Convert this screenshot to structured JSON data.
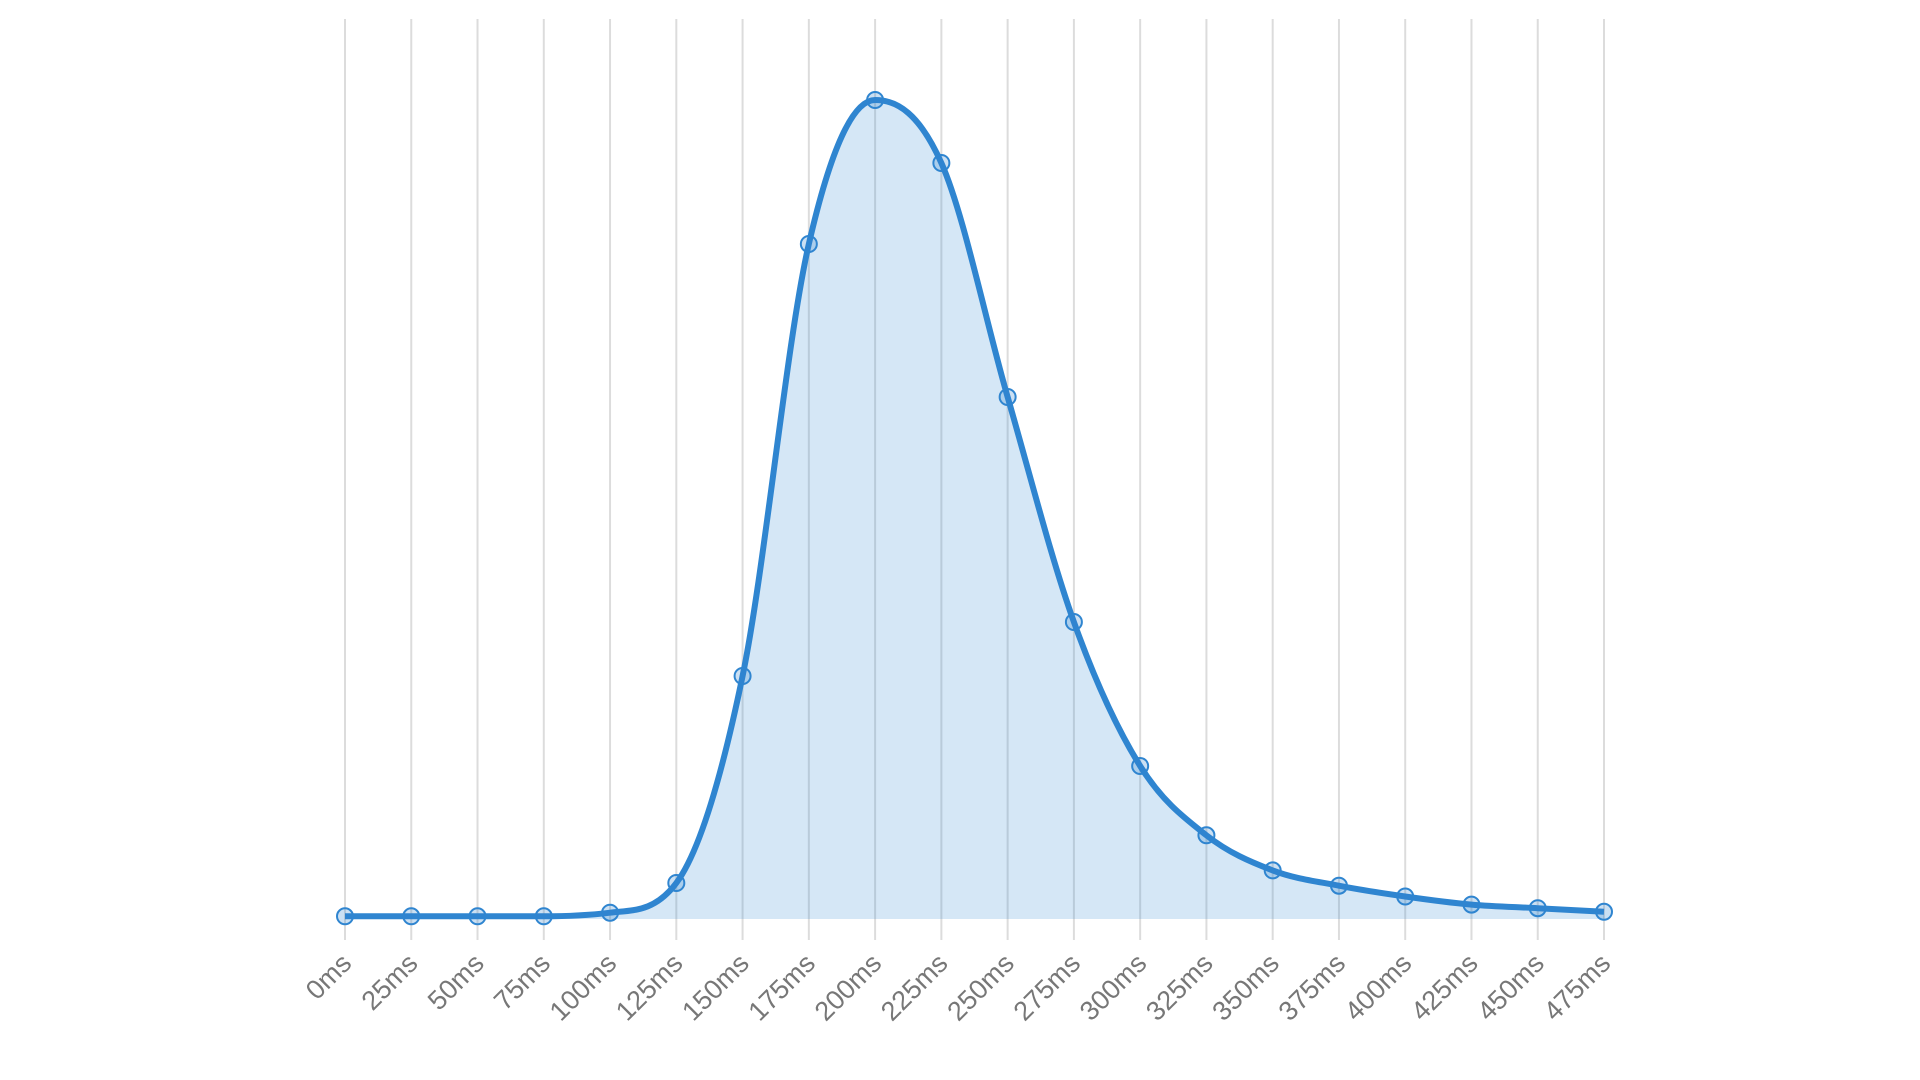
{
  "chart_data": {
    "type": "area",
    "categories": [
      "0ms",
      "25ms",
      "50ms",
      "75ms",
      "100ms",
      "125ms",
      "150ms",
      "175ms",
      "200ms",
      "225ms",
      "250ms",
      "275ms",
      "300ms",
      "325ms",
      "350ms",
      "375ms",
      "400ms",
      "425ms",
      "450ms",
      "475ms"
    ],
    "series": [
      {
        "color": "#2f85d0",
        "values": [
          0.3,
          0.3,
          0.3,
          0.3,
          0.7,
          4,
          27,
          75,
          91,
          84,
          58,
          33,
          17,
          9.3,
          5.4,
          3.7,
          2.5,
          1.6,
          1.2,
          0.8
        ]
      }
    ],
    "ylim": [
      0,
      100
    ],
    "grid": true
  }
}
